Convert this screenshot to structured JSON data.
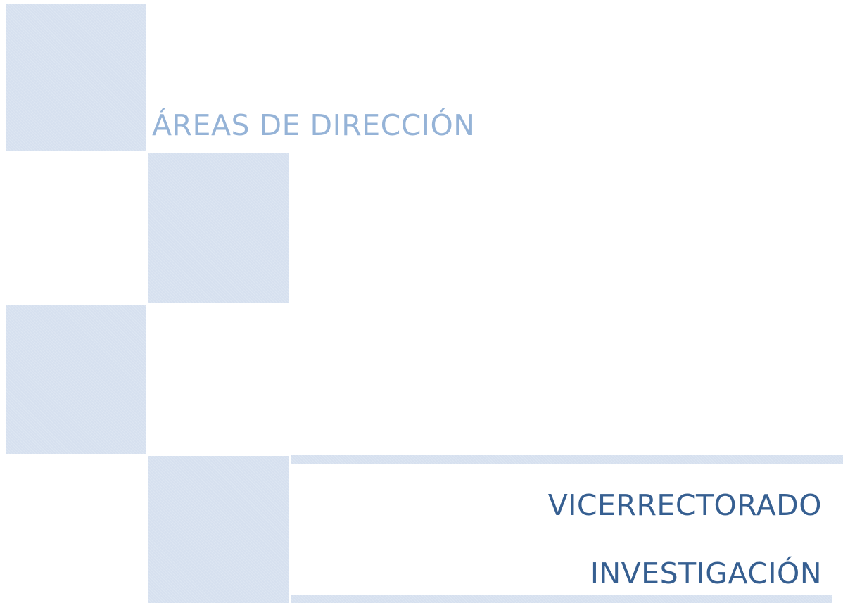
{
  "cover": {
    "section": "ÁREAS DE DIRECCIÓN",
    "title_line1": "VICERRECTORADO",
    "title_line2": "INVESTIGACIÓN"
  }
}
